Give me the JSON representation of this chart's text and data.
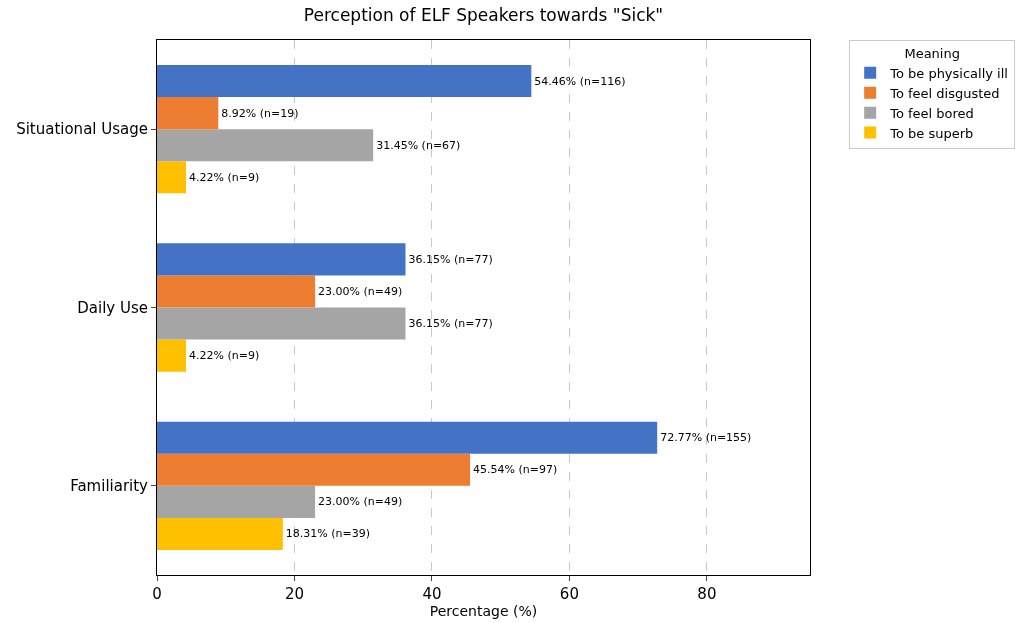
{
  "chart_data": {
    "type": "bar",
    "orientation": "horizontal",
    "title": "Perception of ELF Speakers towards \"Sick\"",
    "xlabel": "Percentage (%)",
    "legend_title": "Meaning",
    "categories": [
      "Situational Usage",
      "Daily Use",
      "Familiarity"
    ],
    "series": [
      {
        "name": "To be superb",
        "color": "#ffc000",
        "values": [
          4.22,
          4.22,
          18.31
        ],
        "value_labels": [
          "4.22% (n=9)",
          "4.22% (n=9)",
          "18.31% (n=39)"
        ]
      },
      {
        "name": "To feel bored",
        "color": "#a5a5a5",
        "values": [
          31.45,
          36.15,
          23.0
        ],
        "value_labels": [
          "31.45% (n=67)",
          "36.15% (n=77)",
          "23.00% (n=49)"
        ]
      },
      {
        "name": "To feel disgusted",
        "color": "#ed7d31",
        "values": [
          8.92,
          23.0,
          45.54
        ],
        "value_labels": [
          "8.92% (n=19)",
          "23.00% (n=49)",
          "45.54% (n=97)"
        ]
      },
      {
        "name": "To be physically ill",
        "color": "#4472c4",
        "values": [
          54.46,
          36.15,
          72.77
        ],
        "value_labels": [
          "54.46% (n=116)",
          "36.15% (n=77)",
          "72.77% (n=155)"
        ]
      }
    ],
    "xlim": [
      0,
      95
    ],
    "xticks": [
      0,
      20,
      40,
      60,
      80
    ],
    "grid": "x",
    "legend": "top right"
  }
}
